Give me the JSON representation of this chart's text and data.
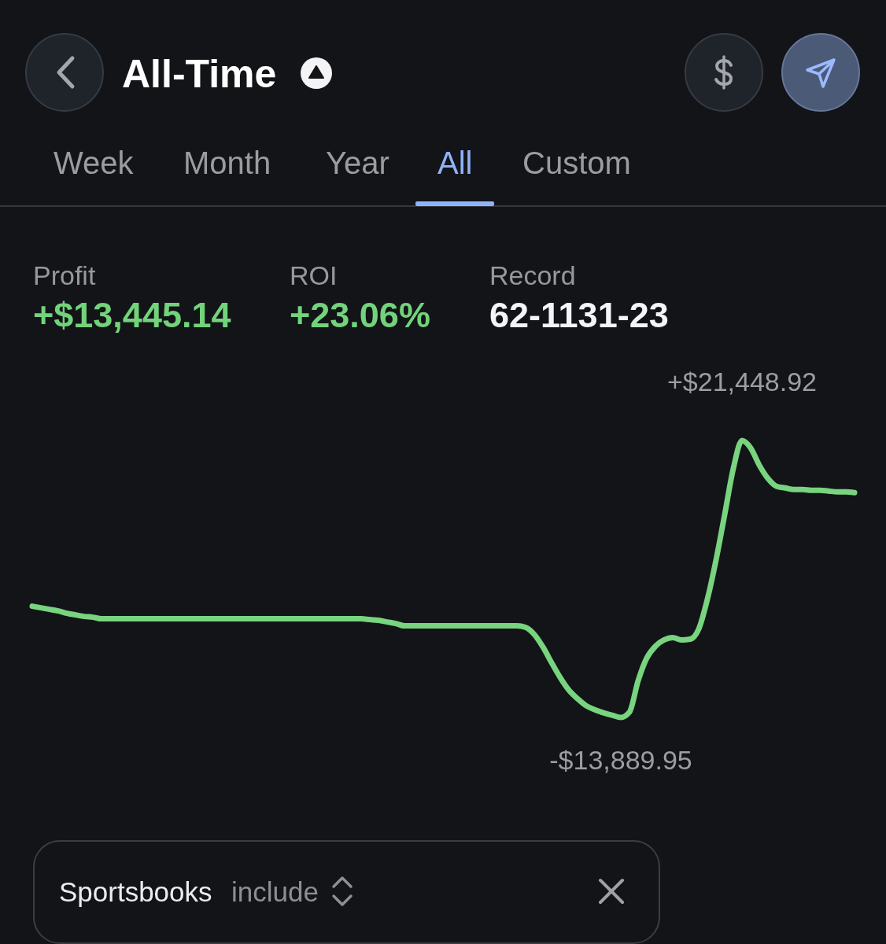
{
  "chart_data": {
    "type": "line",
    "title": "All-Time",
    "annotations": [
      "Week",
      "Month",
      "Year",
      "All",
      "Custom",
      "Profit",
      "+$13,445.14",
      "ROI",
      "+23.06%",
      "Record",
      "62-1131-23",
      "Sportsbooks",
      "include"
    ],
    "categories": [
      null,
      null,
      null,
      null,
      null,
      null,
      null,
      null,
      null,
      null,
      null,
      null,
      null,
      null,
      null,
      null,
      null,
      null,
      null,
      null,
      null,
      null,
      null,
      null,
      null,
      null,
      null,
      null,
      null,
      null,
      null,
      null,
      null,
      null,
      null,
      null,
      null,
      null,
      null,
      null,
      null,
      null,
      null,
      null,
      null,
      null,
      null,
      null,
      null,
      null,
      null,
      null,
      null,
      null,
      null,
      null,
      null,
      null,
      null,
      null,
      null,
      null,
      null,
      null,
      null,
      null,
      null,
      null,
      null,
      null,
      null,
      null,
      null,
      null,
      null,
      null,
      null,
      null,
      null,
      null,
      null,
      null,
      null,
      null,
      null,
      null,
      null,
      null,
      null,
      null,
      null,
      null,
      null,
      null,
      null,
      null
    ],
    "values": [
      300,
      100,
      -100,
      -300,
      -600,
      -800,
      -1000,
      -1100,
      -1300,
      -1300,
      -1300,
      -1300,
      -1300,
      -1300,
      -1300,
      -1300,
      -1300,
      -1300,
      -1300,
      -1300,
      -1300,
      -1300,
      -1300,
      -1300,
      -1300,
      -1300,
      -1300,
      -1300,
      -1300,
      -1300,
      -1300,
      -1300,
      -1300,
      -1300,
      -1300,
      -1300,
      -1300,
      -1300,
      -1300,
      -1400,
      -1500,
      -1700,
      -1900,
      -2200,
      -2200,
      -2200,
      -2200,
      -2200,
      -2200,
      -2200,
      -2200,
      -2200,
      -2200,
      -2200,
      -2200,
      -2200,
      -2200,
      -2400,
      -3300,
      -4900,
      -6900,
      -8800,
      -10400,
      -11500,
      -12400,
      -12900,
      -13300,
      -13600,
      -13889.95,
      -13200,
      -9200,
      -6300,
      -4800,
      -4000,
      -3700,
      -4000,
      -3900,
      -2600,
      1200,
      6200,
      12000,
      17900,
      21448.92,
      20500,
      18300,
      16600,
      15600,
      15400,
      15200,
      15200,
      15100,
      15100,
      15000,
      14900,
      14900,
      14800
    ],
    "value_labels": [
      null,
      null,
      null,
      null,
      null,
      null,
      null,
      null,
      null,
      null,
      null,
      null,
      null,
      null,
      null,
      null,
      null,
      null,
      null,
      null,
      null,
      null,
      null,
      null,
      null,
      null,
      null,
      null,
      null,
      null,
      null,
      null,
      null,
      null,
      null,
      null,
      null,
      null,
      null,
      null,
      null,
      null,
      null,
      null,
      null,
      null,
      null,
      null,
      null,
      null,
      null,
      null,
      null,
      null,
      null,
      null,
      null,
      null,
      null,
      null,
      null,
      null,
      null,
      null,
      null,
      null,
      null,
      null,
      "-$13,889.95",
      null,
      null,
      null,
      null,
      null,
      null,
      null,
      null,
      null,
      null,
      null,
      null,
      null,
      "+$21,448.92",
      null,
      null,
      null,
      null,
      null,
      null,
      null,
      null,
      null,
      null,
      null,
      null,
      null
    ],
    "color": "#78d47e"
  }
}
